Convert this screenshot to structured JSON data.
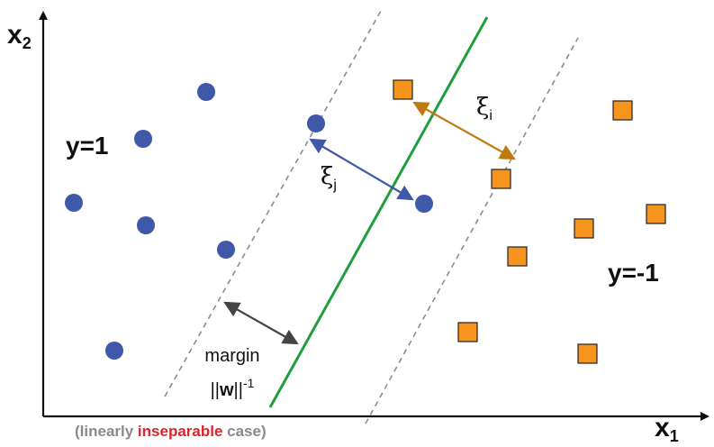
{
  "axes": {
    "x_label": "x",
    "x_sub": "1",
    "y_label": "x",
    "y_sub": "2"
  },
  "classes": {
    "positive_label": "y=1",
    "negative_label": "y=-1"
  },
  "margin_label": {
    "line1": "margin",
    "norm_open": "||",
    "norm_var": "w",
    "norm_close": "||",
    "exponent": "-1"
  },
  "slack": {
    "i_symbol": "ξ",
    "i_sub": "i",
    "j_symbol": "ξ",
    "j_sub": "j"
  },
  "caption": {
    "before": "(linearly ",
    "highlight": "inseparable",
    "after": " case)"
  },
  "colors": {
    "circle_fill": "#3f58a8",
    "square_fill": "#f7941d",
    "square_stroke": "#222222",
    "hyperplane": "#1f9e3c",
    "margin_lines": "#8c8c8c",
    "margin_arrow": "#444444",
    "xi_i_arrow": "#c07a12",
    "xi_j_arrow": "#3f58a8",
    "caption_gray": "#8a8a8a",
    "caption_red": "#d9242b"
  }
}
